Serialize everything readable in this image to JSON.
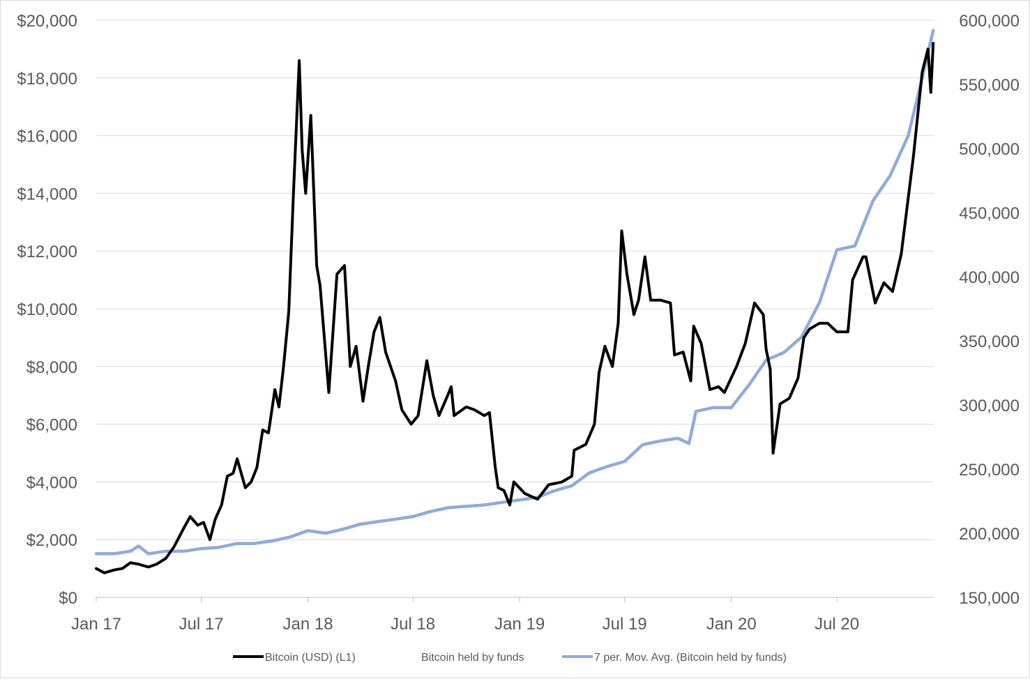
{
  "chart_data": {
    "type": "line",
    "title": "",
    "xlabel": "",
    "ylabel": "",
    "x_tick_labels": [
      "Jan 17",
      "Jul 17",
      "Jan 18",
      "Jul 18",
      "Jan 19",
      "Jul 19",
      "Jan 20",
      "Jul 20"
    ],
    "y_left_tick_labels": [
      "$0",
      "$2,000",
      "$4,000",
      "$6,000",
      "$8,000",
      "$10,000",
      "$12,000",
      "$14,000",
      "$16,000",
      "$18,000",
      "$20,000"
    ],
    "y_right_tick_labels": [
      "150,000",
      "200,000",
      "250,000",
      "300,000",
      "350,000",
      "400,000",
      "450,000",
      "500,000",
      "550,000",
      "600,000"
    ],
    "y_left_range": [
      0,
      20000
    ],
    "y_right_range": [
      150000,
      600000
    ],
    "grid": "horizontal",
    "legend_position": "bottom",
    "legend": [
      {
        "label": "Bitcoin (USD)  (L1)",
        "color": "#000000"
      },
      {
        "label": "Bitcoin held by funds",
        "color": ""
      },
      {
        "label": "7 per. Mov. Avg. (Bitcoin held by funds)",
        "color": "#8faadc"
      }
    ],
    "series": [
      {
        "name": "Bitcoin (USD)  (L1)",
        "axis": "left",
        "color": "#000000",
        "points": [
          [
            "2017-01-01",
            1000
          ],
          [
            "2017-01-15",
            850
          ],
          [
            "2017-02-01",
            950
          ],
          [
            "2017-02-15",
            1000
          ],
          [
            "2017-03-01",
            1200
          ],
          [
            "2017-03-15",
            1150
          ],
          [
            "2017-04-01",
            1050
          ],
          [
            "2017-04-15",
            1150
          ],
          [
            "2017-05-01",
            1350
          ],
          [
            "2017-05-15",
            1750
          ],
          [
            "2017-06-01",
            2400
          ],
          [
            "2017-06-12",
            2800
          ],
          [
            "2017-06-25",
            2500
          ],
          [
            "2017-07-05",
            2600
          ],
          [
            "2017-07-16",
            2000
          ],
          [
            "2017-07-25",
            2700
          ],
          [
            "2017-08-05",
            3200
          ],
          [
            "2017-08-15",
            4200
          ],
          [
            "2017-08-25",
            4300
          ],
          [
            "2017-09-01",
            4800
          ],
          [
            "2017-09-15",
            3800
          ],
          [
            "2017-09-25",
            4000
          ],
          [
            "2017-10-05",
            4500
          ],
          [
            "2017-10-15",
            5800
          ],
          [
            "2017-10-25",
            5700
          ],
          [
            "2017-11-05",
            7200
          ],
          [
            "2017-11-12",
            6600
          ],
          [
            "2017-11-20",
            8000
          ],
          [
            "2017-11-29",
            9900
          ],
          [
            "2017-12-07",
            14000
          ],
          [
            "2017-12-17",
            18600
          ],
          [
            "2017-12-22",
            15500
          ],
          [
            "2017-12-28",
            14000
          ],
          [
            "2018-01-06",
            16700
          ],
          [
            "2018-01-16",
            11500
          ],
          [
            "2018-01-22",
            10800
          ],
          [
            "2018-02-06",
            7100
          ],
          [
            "2018-02-20",
            11200
          ],
          [
            "2018-03-05",
            11500
          ],
          [
            "2018-03-15",
            8000
          ],
          [
            "2018-03-25",
            8700
          ],
          [
            "2018-04-06",
            6800
          ],
          [
            "2018-04-15",
            8000
          ],
          [
            "2018-04-25",
            9200
          ],
          [
            "2018-05-05",
            9700
          ],
          [
            "2018-05-15",
            8500
          ],
          [
            "2018-06-01",
            7500
          ],
          [
            "2018-06-12",
            6500
          ],
          [
            "2018-06-28",
            6000
          ],
          [
            "2018-07-10",
            6300
          ],
          [
            "2018-07-25",
            8200
          ],
          [
            "2018-08-05",
            7000
          ],
          [
            "2018-08-15",
            6300
          ],
          [
            "2018-08-30",
            7000
          ],
          [
            "2018-09-05",
            7300
          ],
          [
            "2018-09-10",
            6300
          ],
          [
            "2018-10-01",
            6600
          ],
          [
            "2018-10-15",
            6500
          ],
          [
            "2018-11-01",
            6300
          ],
          [
            "2018-11-10",
            6400
          ],
          [
            "2018-11-20",
            4500
          ],
          [
            "2018-11-25",
            3800
          ],
          [
            "2018-12-05",
            3700
          ],
          [
            "2018-12-15",
            3200
          ],
          [
            "2018-12-22",
            4000
          ],
          [
            "2019-01-10",
            3600
          ],
          [
            "2019-02-01",
            3400
          ],
          [
            "2019-02-20",
            3900
          ],
          [
            "2019-03-15",
            4000
          ],
          [
            "2019-04-01",
            4200
          ],
          [
            "2019-04-05",
            5100
          ],
          [
            "2019-04-25",
            5300
          ],
          [
            "2019-05-10",
            6000
          ],
          [
            "2019-05-18",
            7800
          ],
          [
            "2019-05-28",
            8700
          ],
          [
            "2019-06-10",
            8000
          ],
          [
            "2019-06-20",
            9500
          ],
          [
            "2019-06-26",
            12700
          ],
          [
            "2019-07-05",
            11200
          ],
          [
            "2019-07-17",
            9800
          ],
          [
            "2019-07-25",
            10300
          ],
          [
            "2019-08-05",
            11800
          ],
          [
            "2019-08-15",
            10300
          ],
          [
            "2019-09-01",
            10300
          ],
          [
            "2019-09-18",
            10200
          ],
          [
            "2019-09-25",
            8400
          ],
          [
            "2019-10-10",
            8500
          ],
          [
            "2019-10-23",
            7500
          ],
          [
            "2019-10-28",
            9400
          ],
          [
            "2019-11-10",
            8800
          ],
          [
            "2019-11-25",
            7200
          ],
          [
            "2019-12-10",
            7300
          ],
          [
            "2019-12-20",
            7100
          ],
          [
            "2020-01-10",
            8000
          ],
          [
            "2020-01-25",
            8800
          ],
          [
            "2020-02-10",
            10200
          ],
          [
            "2020-02-25",
            9800
          ],
          [
            "2020-03-01",
            8600
          ],
          [
            "2020-03-08",
            7900
          ],
          [
            "2020-03-13",
            5000
          ],
          [
            "2020-03-25",
            6700
          ],
          [
            "2020-04-10",
            6900
          ],
          [
            "2020-04-25",
            7600
          ],
          [
            "2020-05-05",
            9000
          ],
          [
            "2020-05-15",
            9300
          ],
          [
            "2020-06-01",
            9500
          ],
          [
            "2020-06-15",
            9500
          ],
          [
            "2020-07-01",
            9200
          ],
          [
            "2020-07-20",
            9200
          ],
          [
            "2020-07-28",
            11000
          ],
          [
            "2020-08-15",
            11800
          ],
          [
            "2020-08-20",
            11800
          ],
          [
            "2020-09-05",
            10200
          ],
          [
            "2020-09-20",
            10900
          ],
          [
            "2020-10-05",
            10600
          ],
          [
            "2020-10-20",
            11900
          ],
          [
            "2020-10-28",
            13200
          ],
          [
            "2020-11-10",
            15300
          ],
          [
            "2020-11-25",
            18200
          ],
          [
            "2020-12-05",
            19000
          ],
          [
            "2020-12-10",
            17500
          ],
          [
            "2020-12-14",
            19200
          ]
        ]
      },
      {
        "name": "7 per. Mov. Avg. (Bitcoin held by funds)",
        "axis": "right",
        "color": "#8faadc",
        "points": [
          [
            "2017-01-01",
            184000
          ],
          [
            "2017-02-01",
            184000
          ],
          [
            "2017-03-01",
            186000
          ],
          [
            "2017-03-15",
            190000
          ],
          [
            "2017-04-01",
            184000
          ],
          [
            "2017-05-01",
            186000
          ],
          [
            "2017-06-01",
            186000
          ],
          [
            "2017-07-01",
            188000
          ],
          [
            "2017-08-01",
            189000
          ],
          [
            "2017-09-01",
            192000
          ],
          [
            "2017-10-01",
            192000
          ],
          [
            "2017-11-01",
            194000
          ],
          [
            "2017-12-01",
            197000
          ],
          [
            "2018-01-01",
            202000
          ],
          [
            "2018-02-01",
            200000
          ],
          [
            "2018-03-01",
            203000
          ],
          [
            "2018-04-01",
            207000
          ],
          [
            "2018-05-01",
            209000
          ],
          [
            "2018-06-01",
            211000
          ],
          [
            "2018-07-01",
            213000
          ],
          [
            "2018-08-01",
            217000
          ],
          [
            "2018-09-01",
            220000
          ],
          [
            "2018-10-01",
            221000
          ],
          [
            "2018-11-01",
            222000
          ],
          [
            "2018-12-01",
            224000
          ],
          [
            "2019-01-01",
            226000
          ],
          [
            "2019-02-01",
            228000
          ],
          [
            "2019-03-01",
            233000
          ],
          [
            "2019-04-01",
            237000
          ],
          [
            "2019-05-01",
            247000
          ],
          [
            "2019-06-01",
            252000
          ],
          [
            "2019-07-01",
            256000
          ],
          [
            "2019-08-01",
            269000
          ],
          [
            "2019-09-01",
            272000
          ],
          [
            "2019-10-01",
            274000
          ],
          [
            "2019-10-20",
            270000
          ],
          [
            "2019-11-01",
            295000
          ],
          [
            "2019-12-01",
            298000
          ],
          [
            "2020-01-01",
            298000
          ],
          [
            "2020-02-01",
            316000
          ],
          [
            "2020-03-01",
            335000
          ],
          [
            "2020-04-01",
            341000
          ],
          [
            "2020-05-01",
            353000
          ],
          [
            "2020-06-01",
            380000
          ],
          [
            "2020-07-01",
            421000
          ],
          [
            "2020-08-01",
            424000
          ],
          [
            "2020-09-01",
            459000
          ],
          [
            "2020-10-01",
            479000
          ],
          [
            "2020-11-01",
            510000
          ],
          [
            "2020-11-25",
            555000
          ],
          [
            "2020-12-14",
            592000
          ]
        ]
      }
    ]
  }
}
